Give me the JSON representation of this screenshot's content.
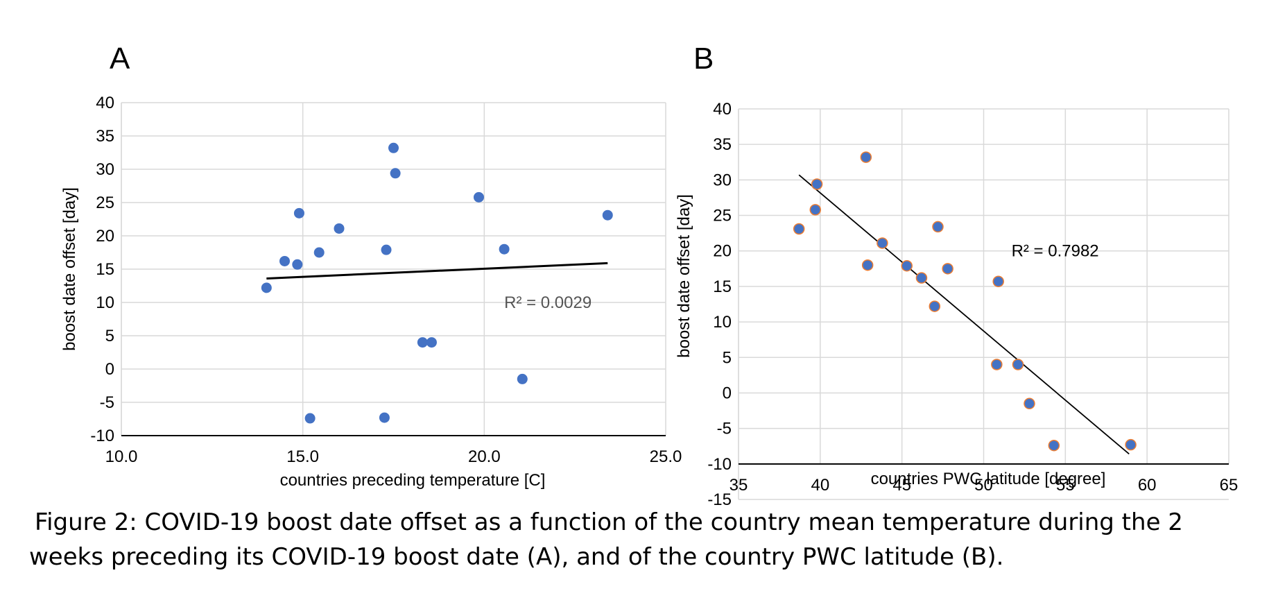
{
  "figure": {
    "panel_a_label": "A",
    "panel_b_label": "B",
    "caption_line1": "Figure 2: COVID-19 boost date offset as a function of the country mean temperature during the 2",
    "caption_line2": "weeks preceding its COVID-19 boost date (A), and of the country PWC latitude (B)."
  },
  "chart_data": [
    {
      "type": "scatter",
      "panel": "A",
      "xlabel": "countries preceding temperature [C]",
      "ylabel": "boost date offset [day]",
      "xlim": [
        10,
        25
      ],
      "ylim": [
        -10,
        40
      ],
      "xticks": [
        "10.0",
        "15.0",
        "20.0",
        "25.0"
      ],
      "yticks": [
        "40",
        "35",
        "30",
        "25",
        "20",
        "15",
        "10",
        "5",
        "0",
        "-5",
        "-10"
      ],
      "grid": true,
      "marker_color": "#4472C4",
      "points": [
        [
          14.0,
          12.2
        ],
        [
          14.5,
          16.2
        ],
        [
          14.85,
          15.7
        ],
        [
          14.9,
          23.4
        ],
        [
          15.2,
          -7.4
        ],
        [
          15.45,
          17.5
        ],
        [
          16.0,
          21.1
        ],
        [
          17.25,
          -7.3
        ],
        [
          17.3,
          17.9
        ],
        [
          17.5,
          33.2
        ],
        [
          17.55,
          29.4
        ],
        [
          18.3,
          4.0
        ],
        [
          18.55,
          4.0
        ],
        [
          19.85,
          25.8
        ],
        [
          20.55,
          18.0
        ],
        [
          21.05,
          -1.5
        ],
        [
          23.4,
          23.1
        ]
      ],
      "trendline": {
        "x": [
          14.0,
          23.4
        ],
        "y": [
          13.6,
          15.9
        ],
        "color": "#000000"
      },
      "r2_label": "R² = 0.0029"
    },
    {
      "type": "scatter",
      "panel": "B",
      "xlabel": "countries PWC latitude [degree]",
      "ylabel": "boost date offset [day]",
      "xlim": [
        35,
        65
      ],
      "ylim": [
        -15,
        40
      ],
      "xticks": [
        "35",
        "40",
        "45",
        "50",
        "55",
        "60",
        "65"
      ],
      "yticks": [
        "40",
        "35",
        "30",
        "25",
        "20",
        "15",
        "10",
        "5",
        "0",
        "-5",
        "-10",
        "-15"
      ],
      "x_axis_crosses_at": -10,
      "grid": true,
      "marker_color": "#4472C4",
      "marker_edge_color": "#ED7D31",
      "points": [
        [
          38.7,
          23.1
        ],
        [
          39.7,
          25.8
        ],
        [
          39.8,
          29.4
        ],
        [
          42.8,
          33.2
        ],
        [
          42.9,
          18.0
        ],
        [
          43.8,
          21.1
        ],
        [
          45.3,
          17.9
        ],
        [
          46.2,
          16.2
        ],
        [
          47.0,
          12.2
        ],
        [
          47.2,
          23.4
        ],
        [
          47.8,
          17.5
        ],
        [
          50.8,
          4.0
        ],
        [
          50.9,
          15.7
        ],
        [
          52.1,
          4.0
        ],
        [
          52.8,
          -1.5
        ],
        [
          54.3,
          -7.4
        ],
        [
          59.0,
          -7.3
        ]
      ],
      "trendline": {
        "x": [
          38.7,
          58.9
        ],
        "y": [
          30.7,
          -8.6
        ],
        "color": "#000000"
      },
      "r2_label": "R² = 0.7982"
    }
  ]
}
